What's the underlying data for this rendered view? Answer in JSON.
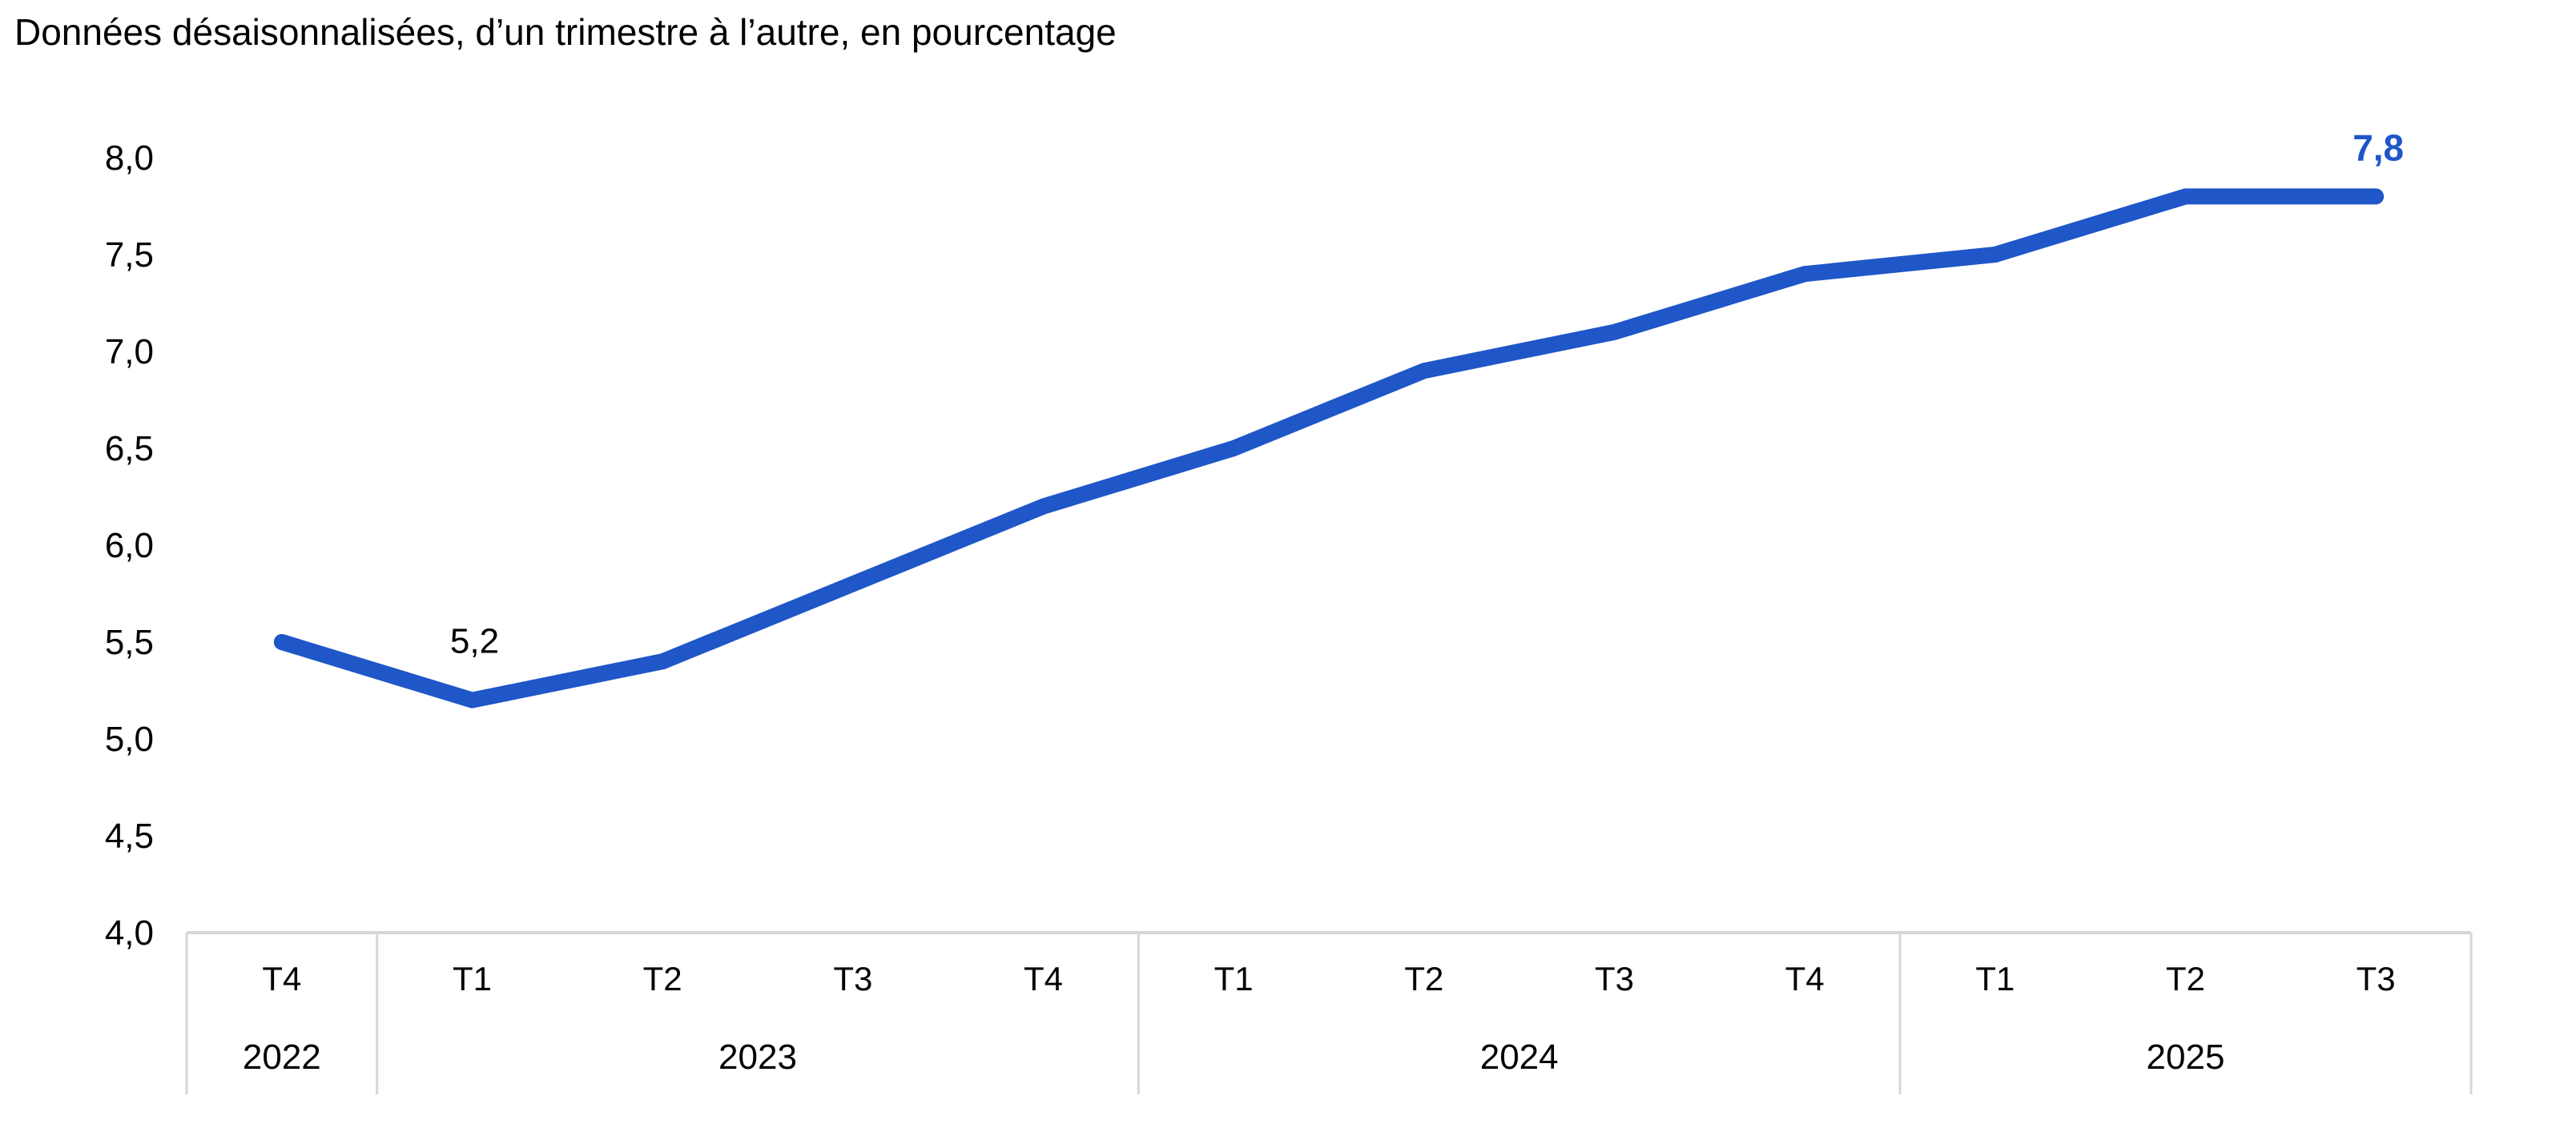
{
  "chart_data": {
    "type": "line",
    "title": "Données désaisonnalisées, d’un trimestre à l’autre, en pourcentage",
    "categories": [
      "T4",
      "T1",
      "T2",
      "T3",
      "T4",
      "T1",
      "T2",
      "T3",
      "T4",
      "T1",
      "T2",
      "T3"
    ],
    "year_groups": [
      {
        "label": "2022",
        "quarters": [
          "T4"
        ]
      },
      {
        "label": "2023",
        "quarters": [
          "T1",
          "T2",
          "T3",
          "T4"
        ]
      },
      {
        "label": "2024",
        "quarters": [
          "T1",
          "T2",
          "T3",
          "T4"
        ]
      },
      {
        "label": "2025",
        "quarters": [
          "T1",
          "T2",
          "T3"
        ]
      }
    ],
    "values": [
      5.5,
      5.2,
      5.4,
      5.8,
      6.2,
      6.5,
      6.9,
      7.1,
      7.4,
      7.5,
      7.8,
      7.8
    ],
    "ylim": [
      4.0,
      8.0
    ],
    "y_ticks": [
      "8,0",
      "7,5",
      "7,0",
      "6,5",
      "6,0",
      "5,5",
      "5,0",
      "4,5",
      "4,0"
    ],
    "grid": false,
    "legend": "none",
    "xlabel": "",
    "ylabel": "",
    "annotations": [
      {
        "index": 1,
        "text": "5,2",
        "color": "#000000",
        "bold": false,
        "dy": -74
      },
      {
        "index": 11,
        "text": "7,8",
        "color": "#1f56c8",
        "bold": true,
        "dy": -60
      }
    ]
  },
  "colors": {
    "background": "#ffffff",
    "text": "#000000",
    "line": "#1f56c8",
    "table_border": "#d6d6d6"
  }
}
